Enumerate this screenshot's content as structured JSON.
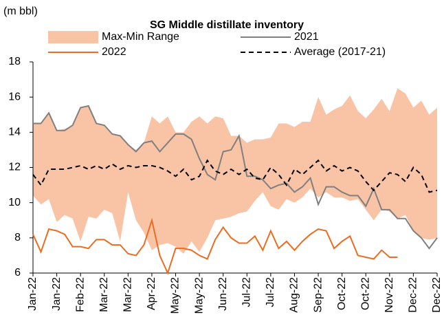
{
  "chart_data": {
    "type": "line",
    "title": "SG Middle distillate inventory",
    "y_axis_label": "(m bbl)",
    "categories": [
      "Jan-22",
      null,
      null,
      "Jan-22",
      null,
      null,
      "Feb-22",
      null,
      null,
      "Mar-22",
      null,
      null,
      "Mar-22",
      null,
      null,
      "Apr-22",
      null,
      null,
      "May-22",
      null,
      null,
      "May-22",
      null,
      null,
      "Jun-22",
      null,
      null,
      "Jul-22",
      null,
      null,
      "Jul-22",
      null,
      null,
      "Aug-22",
      null,
      null,
      "Sep-22",
      null,
      null,
      "Oct-22",
      null,
      null,
      "Oct-22",
      null,
      null,
      "Nov-22",
      null,
      null,
      "Dec-22",
      null,
      null,
      "Dec-22"
    ],
    "range": {
      "name": "Max-Min Range",
      "color": "#f9c3a6",
      "high": [
        14.5,
        14.5,
        15.1,
        14.1,
        14.2,
        14.4,
        15.4,
        15.5,
        14.5,
        14.4,
        13.9,
        13.8,
        13.3,
        13.0,
        13.4,
        14.9,
        14.5,
        14.9,
        14.0,
        14.0,
        14.6,
        14.9,
        14.5,
        14.9,
        14.8,
        13.8,
        13.8,
        13.4,
        13.6,
        13.6,
        13.7,
        14.5,
        14.5,
        14.3,
        14.6,
        14.6,
        16.0,
        15.0,
        15.3,
        15.5,
        16.1,
        15.2,
        14.8,
        15.3,
        15.9,
        15.2,
        16.5,
        16.2,
        15.4,
        15.8,
        15.0,
        15.4
      ],
      "low": [
        10.4,
        9.9,
        10.2,
        8.9,
        9.3,
        9.1,
        7.8,
        9.2,
        9.1,
        9.6,
        9.4,
        7.8,
        10.6,
        9.0,
        8.3,
        7.3,
        7.6,
        7.7,
        7.5,
        7.1,
        7.8,
        7.2,
        8.0,
        9.0,
        9.1,
        9.2,
        9.4,
        9.5,
        10.1,
        10.6,
        9.8,
        9.6,
        10.2,
        10.0,
        10.3,
        10.8,
        10.3,
        10.6,
        10.3,
        10.3,
        10.1,
        10.2,
        9.6,
        9.0,
        9.6,
        9.5,
        9.1,
        9.3,
        8.4,
        8.0,
        7.9,
        8.0
      ]
    },
    "series": [
      {
        "name": "2021",
        "color": "#7f7f7f",
        "dash": false,
        "values": [
          14.5,
          14.5,
          15.1,
          14.1,
          14.1,
          14.4,
          15.4,
          15.5,
          14.5,
          14.4,
          13.9,
          13.8,
          13.3,
          12.9,
          13.4,
          13.5,
          12.9,
          13.4,
          13.9,
          13.9,
          13.6,
          12.5,
          11.6,
          11.3,
          12.9,
          13.0,
          13.8,
          11.5,
          11.5,
          11.3,
          10.8,
          11.0,
          11.1,
          10.6,
          10.9,
          11.4,
          9.9,
          10.9,
          10.9,
          10.6,
          10.4,
          10.4,
          9.8,
          10.8,
          9.6,
          9.6,
          9.1,
          9.1,
          8.4,
          8.0,
          7.4,
          8.0
        ]
      },
      {
        "name": "2022",
        "color": "#ed6b1e",
        "dash": false,
        "values": [
          8.2,
          7.2,
          8.5,
          8.4,
          8.2,
          7.5,
          7.5,
          7.4,
          7.9,
          7.9,
          7.6,
          7.6,
          7.1,
          7.0,
          7.6,
          9.0,
          7.0,
          6.0,
          7.4,
          7.4,
          7.3,
          7.0,
          6.8,
          7.9,
          8.6,
          8.0,
          7.7,
          7.7,
          8.1,
          7.3,
          8.4,
          7.4,
          7.8,
          7.3,
          7.8,
          8.2,
          8.5,
          8.4,
          7.4,
          7.8,
          8.1,
          7.0,
          6.9,
          6.8,
          7.3,
          6.9,
          6.9,
          null,
          null,
          null,
          null,
          null
        ]
      },
      {
        "name": "Average (2017-21)",
        "color": "#000000",
        "dash": true,
        "values": [
          11.6,
          11.0,
          11.9,
          11.9,
          11.9,
          12.0,
          12.1,
          11.9,
          12.1,
          11.9,
          12.2,
          11.9,
          12.1,
          12.0,
          12.1,
          12.1,
          12.0,
          11.8,
          11.5,
          11.9,
          11.3,
          11.5,
          12.4,
          11.8,
          11.6,
          11.9,
          11.6,
          11.9,
          11.4,
          11.3,
          12.0,
          11.6,
          11.0,
          11.9,
          11.6,
          12.0,
          12.4,
          11.8,
          12.1,
          11.8,
          12.0,
          11.8,
          11.2,
          10.7,
          11.2,
          11.7,
          11.6,
          11.2,
          12.0,
          11.6,
          10.6,
          10.7
        ]
      }
    ],
    "ylim": [
      6,
      18
    ],
    "yticks": [
      6,
      8,
      10,
      12,
      14,
      16,
      18
    ],
    "grid": false
  }
}
